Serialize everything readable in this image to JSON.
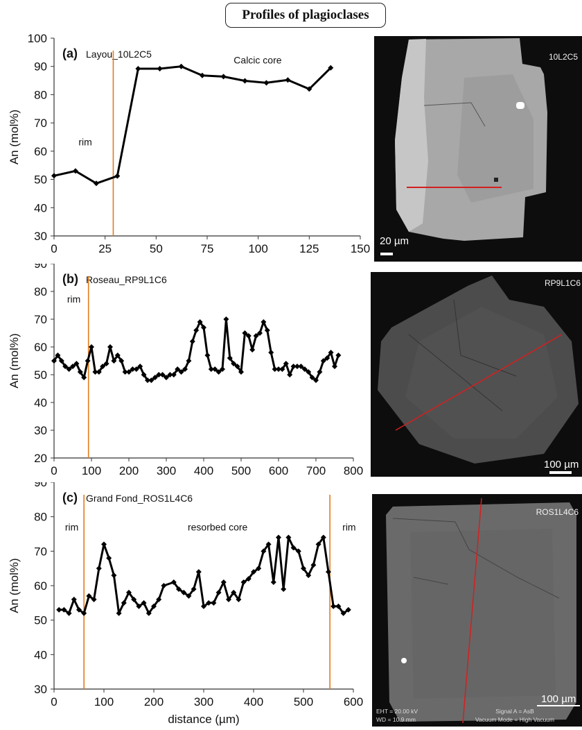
{
  "figure_title": "Profiles of plagioclases",
  "colors": {
    "series": "#000000",
    "vline": "#e07b1a",
    "traverse": "#d41f1f",
    "image_bg": "#0d0d0d"
  },
  "chart_data": [
    {
      "type": "line",
      "panel": "(a)",
      "title": "Layou_10L2C5",
      "xlabel": "",
      "ylabel": "An (mol%)",
      "xlim": [
        0,
        150
      ],
      "ylim": [
        30,
        100
      ],
      "xticks": [
        0,
        25,
        50,
        75,
        100,
        125,
        150
      ],
      "yticks": [
        30,
        40,
        50,
        60,
        70,
        80,
        90,
        100
      ],
      "annotations": [
        {
          "text": "rim",
          "x": 12,
          "y": 62
        },
        {
          "text": "Calcic  core",
          "x": 88,
          "y": 91
        }
      ],
      "vlines": [
        29
      ],
      "x": [
        0,
        10.5,
        20.7,
        31,
        41.2,
        51.8,
        62.3,
        72.6,
        83,
        93.5,
        104,
        114.5,
        125,
        135.5
      ],
      "y": [
        51.3,
        53,
        48.6,
        51.2,
        89.2,
        89.2,
        90,
        86.8,
        86.4,
        84.9,
        84.2,
        85.2,
        82,
        89.5
      ],
      "image": {
        "label": "10L2C5",
        "scale_bar": "20 µm"
      }
    },
    {
      "type": "line",
      "panel": "(b)",
      "title": "Roseau_RP9L1C6",
      "xlabel": "",
      "ylabel": "An (mol%)",
      "xlim": [
        0,
        800
      ],
      "ylim": [
        20,
        90
      ],
      "xticks": [
        0,
        100,
        200,
        300,
        400,
        500,
        600,
        700,
        800
      ],
      "yticks": [
        20,
        30,
        40,
        50,
        60,
        70,
        80,
        90
      ],
      "annotations": [
        {
          "text": "rim",
          "x": 35,
          "y": 76
        }
      ],
      "vlines": [
        92
      ],
      "x": [
        0,
        10,
        20,
        30,
        40,
        50,
        60,
        70,
        80,
        90,
        100,
        110,
        120,
        130,
        140,
        150,
        160,
        170,
        180,
        190,
        200,
        210,
        220,
        230,
        240,
        250,
        260,
        270,
        280,
        290,
        300,
        310,
        320,
        330,
        340,
        350,
        360,
        370,
        380,
        390,
        400,
        410,
        420,
        430,
        440,
        450,
        460,
        470,
        480,
        490,
        500,
        510,
        520,
        530,
        540,
        550,
        560,
        570,
        580,
        590,
        600,
        610,
        620,
        630,
        640,
        650,
        660,
        670,
        680,
        690,
        700,
        710,
        720,
        730,
        740,
        750,
        760
      ],
      "y": [
        55,
        57,
        55,
        53,
        52,
        53,
        54,
        51,
        49,
        55,
        60,
        51,
        51,
        53,
        54,
        60,
        55,
        57,
        55,
        51,
        51,
        52,
        52,
        53,
        50,
        48,
        48,
        49,
        50,
        50,
        49,
        50,
        50,
        52,
        51,
        52,
        55,
        62,
        66,
        69,
        67,
        57,
        52,
        52,
        51,
        52,
        70,
        56,
        54,
        53,
        51,
        65,
        64,
        59,
        64,
        65,
        69,
        66,
        58,
        52,
        52,
        52,
        54,
        50,
        53,
        53,
        53,
        52,
        51,
        49,
        48,
        51,
        55,
        56,
        58,
        53,
        57
      ],
      "image": {
        "label": "RP9L1C6",
        "scale_bar": "100 µm"
      }
    },
    {
      "type": "line",
      "panel": "(c)",
      "title": "Grand Fond_ROS1L4C6",
      "xlabel": "distance (µm)",
      "ylabel": "An (mol%)",
      "xlim": [
        0,
        600
      ],
      "ylim": [
        30,
        90
      ],
      "xticks": [
        0,
        100,
        200,
        300,
        400,
        500,
        600
      ],
      "yticks": [
        30,
        40,
        50,
        60,
        70,
        80,
        90
      ],
      "annotations": [
        {
          "text": "rim",
          "x": 22,
          "y": 76
        },
        {
          "text": "resorbed core",
          "x": 268,
          "y": 76
        },
        {
          "text": "rim",
          "x": 578,
          "y": 76
        }
      ],
      "vlines": [
        60,
        553
      ],
      "x": [
        10,
        20,
        30,
        40,
        50,
        60,
        70,
        80,
        90,
        100,
        110,
        120,
        130,
        140,
        150,
        160,
        170,
        180,
        190,
        200,
        210,
        220,
        240,
        250,
        260,
        270,
        280,
        290,
        300,
        310,
        320,
        330,
        340,
        350,
        360,
        370,
        380,
        390,
        400,
        410,
        420,
        430,
        440,
        450,
        460,
        470,
        480,
        490,
        500,
        510,
        520,
        530,
        540,
        550,
        560,
        570,
        580,
        590
      ],
      "y": [
        53,
        53,
        52,
        56,
        53,
        52,
        57,
        56,
        65,
        72,
        68,
        63,
        52,
        55,
        58,
        56,
        54,
        55,
        52,
        54,
        56,
        60,
        61,
        59,
        58,
        57,
        59,
        64,
        54,
        55,
        55,
        58,
        61,
        56,
        58,
        56,
        61,
        62,
        64,
        65,
        70,
        72,
        61,
        74,
        59,
        74,
        71,
        70,
        65,
        63,
        66,
        72,
        74,
        64,
        54,
        54,
        52,
        53
      ],
      "image": {
        "label": "ROS1L4C6",
        "scale_bar": "100 µm",
        "metadata": [
          "EHT = 20.00 kV",
          "WD = 10.9 mm",
          "Signal A = AsB",
          "Vacuum Mode = High Vacuum"
        ]
      }
    }
  ]
}
